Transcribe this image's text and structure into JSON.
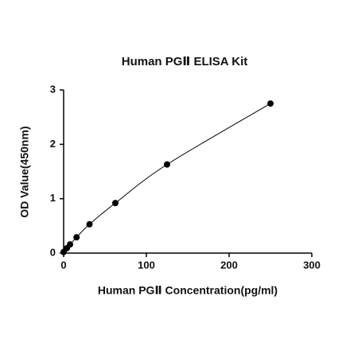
{
  "chart_data": {
    "type": "scatter",
    "title": "Human PGⅡ  ELISA Kit",
    "x_label": "Human PGⅡ Concentration(pg/ml)",
    "y_label": "OD Value(450nm)",
    "series": [
      {
        "color": "#000000",
        "x": [
          0,
          3.9,
          7.8,
          15.6,
          31.25,
          62.5,
          125,
          250
        ],
        "values": [
          0.02,
          0.09,
          0.16,
          0.29,
          0.53,
          0.92,
          1.63,
          2.75
        ]
      }
    ],
    "xlim": [
      0,
      300
    ],
    "xticks": [
      0,
      100,
      200,
      300
    ],
    "ylim": [
      0,
      3
    ],
    "yticks": [
      0,
      1,
      2,
      3
    ],
    "grid": false
  }
}
